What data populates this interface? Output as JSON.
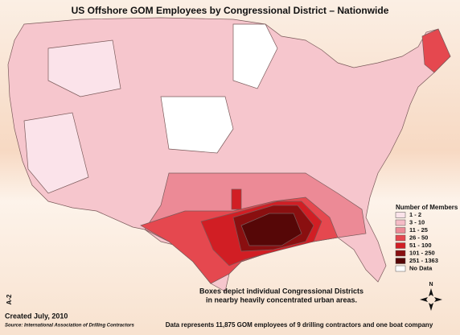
{
  "title": "US Offshore GOM Employees by Congressional District – Nationwide",
  "legend": {
    "title": "Number of Members",
    "items": [
      {
        "label": "1 - 2",
        "color": "#fbe3ea"
      },
      {
        "label": "3 - 10",
        "color": "#f5bcc6"
      },
      {
        "label": "11 - 25",
        "color": "#ec8a96"
      },
      {
        "label": "26 - 50",
        "color": "#e5484f"
      },
      {
        "label": "51 - 100",
        "color": "#d11e24"
      },
      {
        "label": "101 - 250",
        "color": "#8a0f10"
      },
      {
        "label": "251 - 1363",
        "color": "#560707"
      },
      {
        "label": "No Data",
        "color": "#ffffff"
      }
    ]
  },
  "note": [
    "Boxes depict individual Congressional Districts",
    "in nearby heavily concentrated urban areas."
  ],
  "page_label": "A-2",
  "created": "Created July, 2010",
  "source": "Source: International Association of Drilling Contractors",
  "footnote": "Data represents 11,875 GOM employees of 9 drilling contractors and one boat company",
  "compass": "N"
}
